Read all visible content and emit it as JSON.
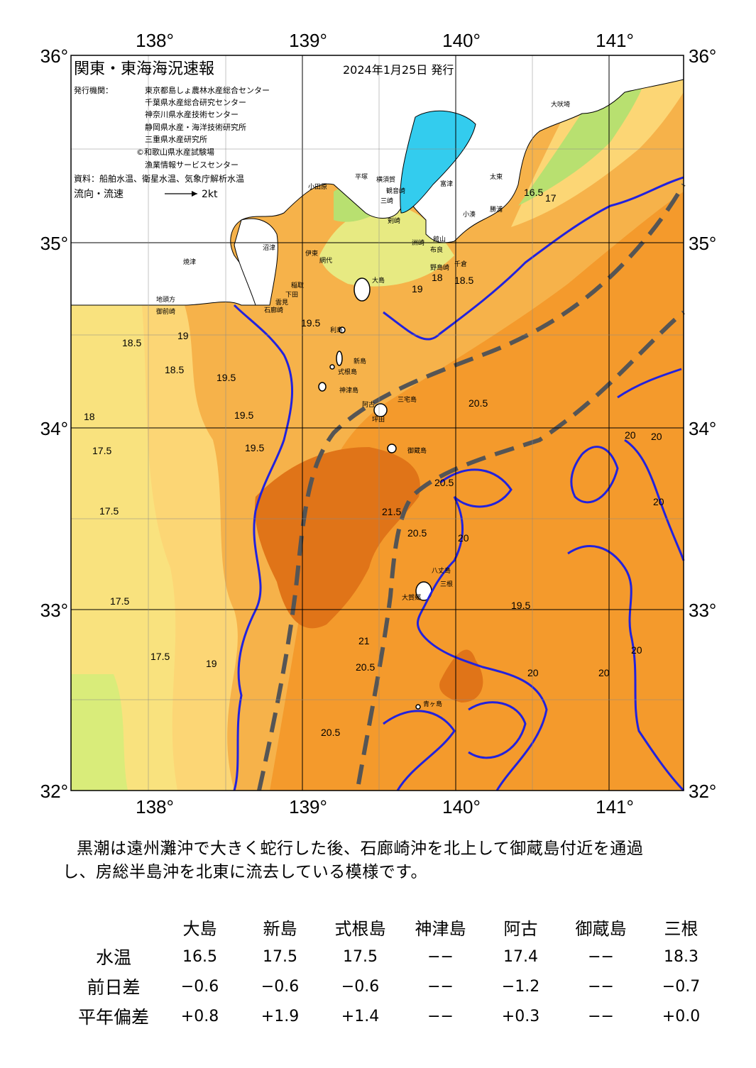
{
  "map": {
    "title": "関東・東海海況速報",
    "date": "2024年1月25日 発行",
    "issuer_label": "発行機関：",
    "issuers": [
      "東京都島しょ農林水産総合センター",
      "千葉県水産総合研究センター",
      "神奈川県水産技術センター",
      "静岡県水産・海洋技術研究所",
      "三重県水産研究所",
      "©和歌山県水産試験場",
      "漁業情報サービスセンター"
    ],
    "source": "資料：船舶水温、衛星水温、気象庁解析水温",
    "flow_label": "流向・流速",
    "flow_scale": "2kt",
    "lon_labels": [
      "138°",
      "139°",
      "140°",
      "141°"
    ],
    "lat_labels": [
      "36°",
      "35°",
      "34°",
      "33°",
      "32°"
    ],
    "place_names": [
      "大島",
      "利島",
      "新島",
      "式根島",
      "神津島",
      "三宅島",
      "御蔵島",
      "八丈島",
      "青ヶ島",
      "三根",
      "阿古",
      "坪田",
      "大賀郷",
      "石廊崎",
      "下田",
      "雲見",
      "稲取",
      "伊東",
      "網代",
      "沼津",
      "焼津",
      "御前崎",
      "地頭方",
      "小田原",
      "平塚",
      "横須賀",
      "観音崎",
      "剣崎",
      "布良",
      "野島崎",
      "洲崎",
      "館山",
      "富津",
      "三崎",
      "千倉",
      "太東",
      "勝浦",
      "小湊",
      "大吠埼"
    ],
    "contour_labels": [
      "16.5",
      "17",
      "17.5",
      "18",
      "18.5",
      "19",
      "19.5",
      "20",
      "20.5",
      "21",
      "21.5"
    ]
  },
  "summary": {
    "line1": "黒潮は遠州灘沖で大きく蛇行した後、石廊崎沖を北上して御蔵島付近を通過",
    "line2": "し、房総半島沖を北東に流去している模様です。"
  },
  "table": {
    "columns": [
      "大島",
      "新島",
      "式根島",
      "神津島",
      "阿古",
      "御蔵島",
      "三根"
    ],
    "rows": [
      {
        "label": "水温",
        "values": [
          "16.5",
          "17.5",
          "17.5",
          "−−",
          "17.4",
          "−−",
          "18.3"
        ]
      },
      {
        "label": "前日差",
        "values": [
          "−0.6",
          "−0.6",
          "−0.6",
          "−−",
          "−1.2",
          "−−",
          "−0.7"
        ]
      },
      {
        "label": "平年偏差",
        "values": [
          "+0.8",
          "+1.9",
          "+1.4",
          "−−",
          "+0.3",
          "−−",
          "+0.0"
        ]
      }
    ]
  },
  "colors": {
    "sea_warm": "#f49a2c",
    "sea_hot": "#e07418",
    "sea_mid": "#f6b24a",
    "sea_cool": "#fcd675",
    "sea_cold": "#e7ea82",
    "sea_green": "#b8e070",
    "lake": "#33ccee",
    "isotherm_20": "#2222dd",
    "kuroshio": "#555555"
  }
}
